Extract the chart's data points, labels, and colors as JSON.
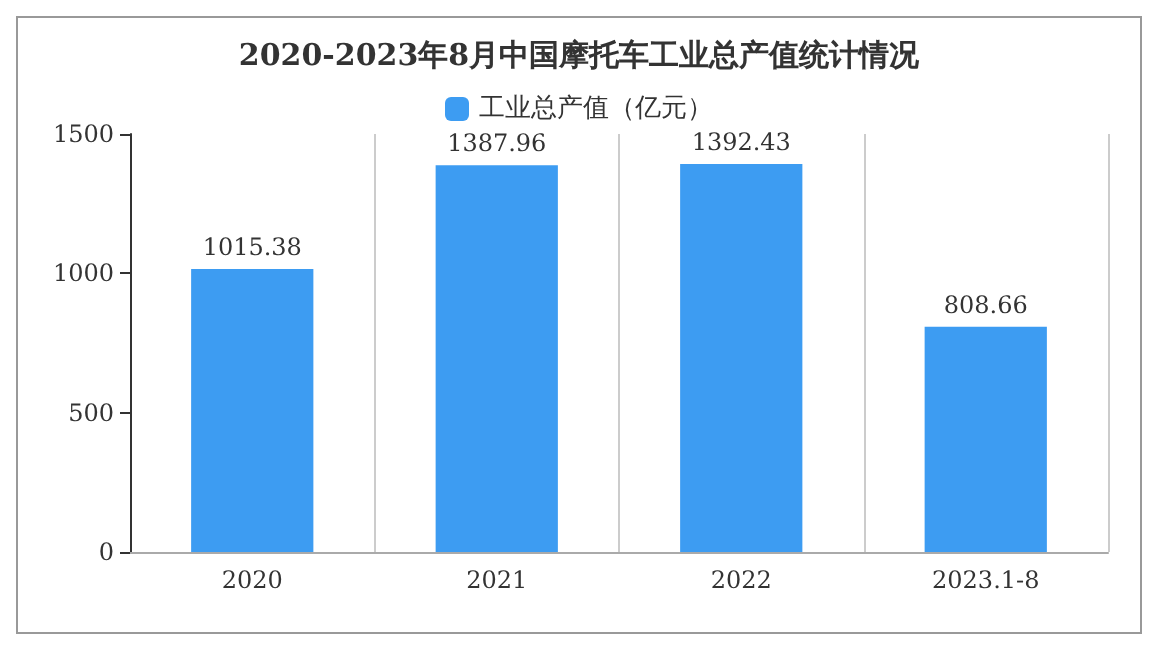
{
  "chart_data": {
    "type": "bar",
    "title": "2020-2023年8月中国摩托车工业总产值统计情况",
    "categories": [
      "2020",
      "2021",
      "2022",
      "2023.1-8"
    ],
    "series": [
      {
        "name": "工业总产值（亿元）",
        "color": "#3d9cf2",
        "values": [
          1015.38,
          1387.96,
          1392.43,
          808.66
        ]
      }
    ],
    "ylim": [
      0,
      1500
    ],
    "yticks": [
      0,
      500,
      1000,
      1500
    ],
    "grid": "x",
    "legend": "top",
    "data_labels": true
  }
}
